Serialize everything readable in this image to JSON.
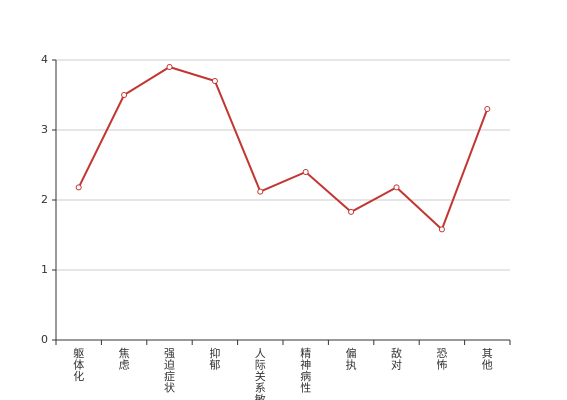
{
  "chart_data": {
    "type": "line",
    "categories": [
      "躯体化",
      "焦虑",
      "强迫症状",
      "抑郁",
      "人际关系敏感",
      "精神病性",
      "偏执",
      "敌对",
      "恐怖",
      "其他"
    ],
    "series": [
      {
        "color": "#c23531",
        "values": [
          2.18,
          3.5,
          3.9,
          3.7,
          2.12,
          2.4,
          1.83,
          2.18,
          1.58,
          3.3
        ]
      }
    ],
    "ylim": [
      0,
      4
    ],
    "yticks": [
      0,
      1,
      2,
      3,
      4
    ],
    "grid": true
  }
}
